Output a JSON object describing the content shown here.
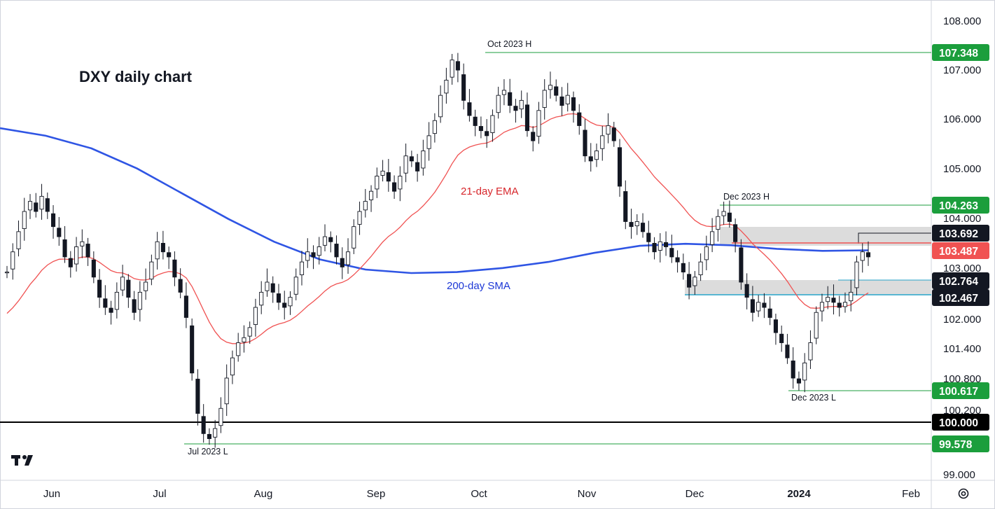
{
  "chart_data": {
    "type": "candlestick",
    "title": "DXY daily chart",
    "instrument": "DXY",
    "timeframe": "daily",
    "x_labels": [
      "Jun",
      "Jul",
      "Aug",
      "Sep",
      "Oct",
      "Nov",
      "Dec",
      "2024",
      "Feb"
    ],
    "y_ticks": [
      "108.000",
      "107.000",
      "106.000",
      "105.000",
      "104.000",
      "103.000",
      "102.000",
      "101.400",
      "100.800",
      "100.200",
      "99.000"
    ],
    "ylim": [
      98.9,
      108.3
    ],
    "price_levels": [
      {
        "label": "107.348",
        "value": 107.348,
        "color": "#1b9e3c",
        "annotation": "Oct 2023 H"
      },
      {
        "label": "104.263",
        "value": 104.263,
        "color": "#1b9e3c",
        "annotation": "Dec 2023 H"
      },
      {
        "label": "103.692",
        "value": 103.692,
        "color": "#131722",
        "annotation": ""
      },
      {
        "label": "103.487",
        "value": 103.487,
        "color": "#f05252",
        "annotation": ""
      },
      {
        "label": "102.764",
        "value": 102.764,
        "color": "#131722",
        "annotation": ""
      },
      {
        "label": "102.467",
        "value": 102.467,
        "color": "#131722",
        "annotation": ""
      },
      {
        "label": "100.617",
        "value": 100.617,
        "color": "#1b9e3c",
        "annotation": "Dec 2023 L"
      },
      {
        "label": "100.000",
        "value": 100.0,
        "color": "#000000",
        "annotation": ""
      },
      {
        "label": "99.578",
        "value": 99.578,
        "color": "#1b9e3c",
        "annotation": "Jul 2023 L"
      }
    ],
    "zones": [
      {
        "low": 103.487,
        "high": 103.692
      },
      {
        "low": 102.467,
        "high": 102.764
      }
    ],
    "indicators": [
      {
        "name": "21-day EMA",
        "color": "#f05252"
      },
      {
        "name": "200-day SMA",
        "color": "#2f55e4"
      }
    ],
    "sma_200": [
      105.85,
      105.7,
      105.45,
      105.05,
      104.55,
      104.05,
      103.6,
      103.25,
      103.05,
      102.98,
      103.0,
      103.08,
      103.2,
      103.38,
      103.52,
      103.56,
      103.53,
      103.46,
      103.42,
      103.43
    ],
    "ema_21_breaks": [
      [
        0.003,
        102.3
      ],
      [
        0.08,
        103.1
      ],
      [
        0.16,
        103.2
      ],
      [
        0.22,
        102.35
      ],
      [
        0.26,
        102.95
      ]
    ],
    "candles_summary": {
      "start_price": 103.0,
      "high": 107.348,
      "low": 99.578,
      "last_close": 103.3,
      "grid": false,
      "legend_position": "none"
    },
    "price_path": [
      103.0,
      103.4,
      103.8,
      104.2,
      104.4,
      104.2,
      104.5,
      104.2,
      103.9,
      103.7,
      103.3,
      103.1,
      103.5,
      103.6,
      103.3,
      102.9,
      102.5,
      102.3,
      102.2,
      102.6,
      102.9,
      102.5,
      102.2,
      102.6,
      102.8,
      103.2,
      103.6,
      103.4,
      103.3,
      102.9,
      102.6,
      102.1,
      101.0,
      100.2,
      99.8,
      99.7,
      99.9,
      100.3,
      100.9,
      101.3,
      101.6,
      101.7,
      101.9,
      102.3,
      102.6,
      102.8,
      102.6,
      102.4,
      102.3,
      102.5,
      102.9,
      103.2,
      103.4,
      103.3,
      103.5,
      103.7,
      103.6,
      103.3,
      103.1,
      103.4,
      103.9,
      104.2,
      104.4,
      104.6,
      104.9,
      105.0,
      104.8,
      104.6,
      104.9,
      105.3,
      105.2,
      105.0,
      105.4,
      105.7,
      106.0,
      106.5,
      106.8,
      107.2,
      107.0,
      106.4,
      106.1,
      105.9,
      105.8,
      105.7,
      106.1,
      106.5,
      106.6,
      106.3,
      106.2,
      106.4,
      105.8,
      105.6,
      106.2,
      106.6,
      106.7,
      106.5,
      106.3,
      106.5,
      106.2,
      105.9,
      105.3,
      105.2,
      105.4,
      105.7,
      105.9,
      105.6,
      104.7,
      104.0,
      103.9,
      104.0,
      103.8,
      103.6,
      103.4,
      103.6,
      103.5,
      103.3,
      103.2,
      103.0,
      102.7,
      102.9,
      103.2,
      103.5,
      103.8,
      104.1,
      104.2,
      104.0,
      103.6,
      102.8,
      102.5,
      102.2,
      102.4,
      102.3,
      102.1,
      101.8,
      101.6,
      101.3,
      100.9,
      100.8,
      101.2,
      101.6,
      102.2,
      102.4,
      102.5,
      102.4,
      102.3,
      102.4,
      102.6,
      103.2,
      103.4,
      103.3
    ]
  }
}
